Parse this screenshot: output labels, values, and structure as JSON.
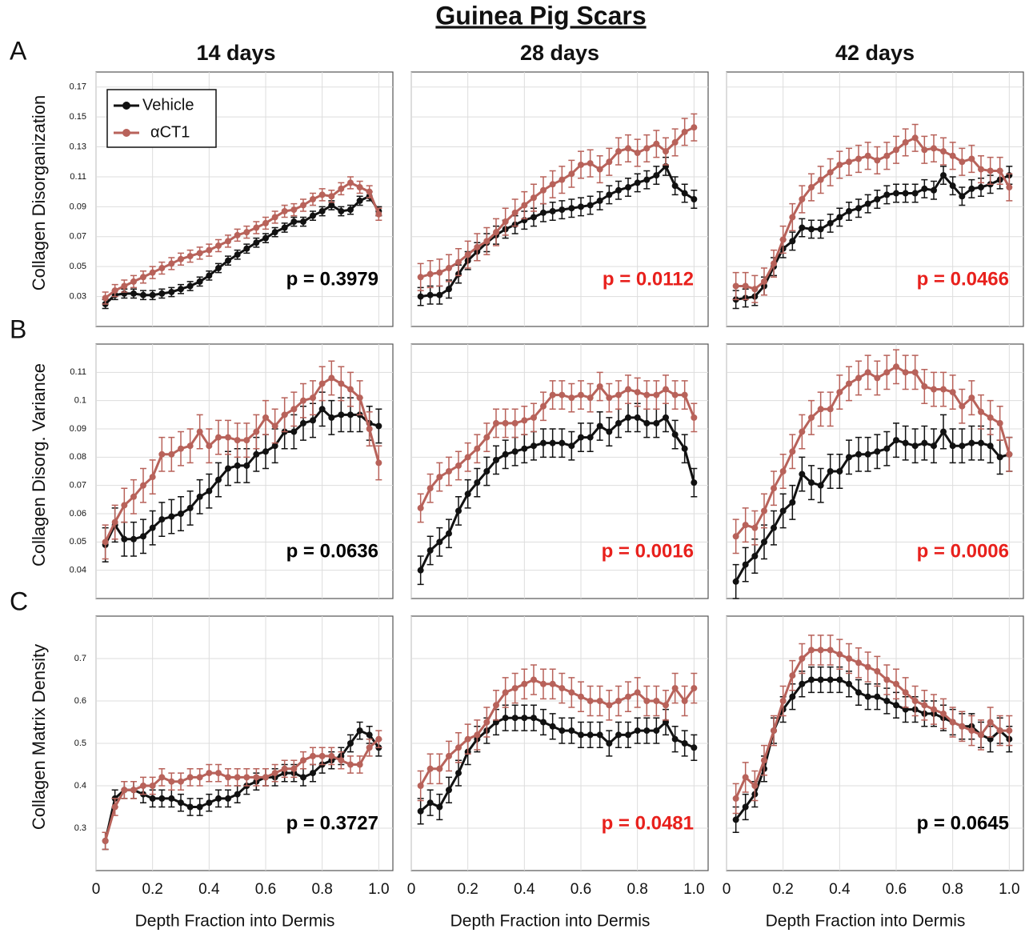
{
  "title": "Guinea Pig Scars",
  "chart_data": [
    {
      "type": "line",
      "title": "14 days",
      "panel_label": "A",
      "ylabel": "Collagen Disorganization",
      "legend": "upper left",
      "annotation": "p = 0.3979",
      "annotation_color": "#000000",
      "grid": true,
      "xlim": [
        0,
        1.05
      ],
      "ylim": [
        0.01,
        0.18
      ],
      "yticks": [
        0.03,
        0.05,
        0.07,
        0.09,
        0.11,
        0.13,
        0.15,
        0.17
      ],
      "x": [
        0.033,
        0.067,
        0.1,
        0.133,
        0.167,
        0.2,
        0.233,
        0.267,
        0.3,
        0.333,
        0.367,
        0.4,
        0.433,
        0.467,
        0.5,
        0.533,
        0.567,
        0.6,
        0.633,
        0.667,
        0.7,
        0.733,
        0.767,
        0.8,
        0.833,
        0.867,
        0.9,
        0.933,
        0.967,
        1.0
      ],
      "series": [
        {
          "name": "Vehicle",
          "color": "#111111",
          "error": 0.003,
          "values": [
            0.025,
            0.031,
            0.032,
            0.032,
            0.031,
            0.031,
            0.032,
            0.033,
            0.035,
            0.037,
            0.04,
            0.044,
            0.049,
            0.054,
            0.058,
            0.062,
            0.066,
            0.069,
            0.073,
            0.076,
            0.08,
            0.08,
            0.084,
            0.087,
            0.091,
            0.087,
            0.088,
            0.094,
            0.097,
            0.087
          ]
        },
        {
          "name": "αCT1",
          "color": "#b8625a",
          "error": 0.004,
          "values": [
            0.029,
            0.034,
            0.037,
            0.04,
            0.043,
            0.046,
            0.049,
            0.052,
            0.055,
            0.057,
            0.059,
            0.061,
            0.064,
            0.067,
            0.071,
            0.073,
            0.076,
            0.079,
            0.083,
            0.087,
            0.088,
            0.091,
            0.095,
            0.098,
            0.097,
            0.102,
            0.106,
            0.103,
            0.1,
            0.085
          ]
        }
      ]
    },
    {
      "type": "line",
      "title": "28 days",
      "annotation": "p = 0.0112",
      "annotation_color": "#e8201c",
      "grid": true,
      "xlim": [
        0,
        1.05
      ],
      "ylim": [
        0.01,
        0.18
      ],
      "x": [
        0.033,
        0.067,
        0.1,
        0.133,
        0.167,
        0.2,
        0.233,
        0.267,
        0.3,
        0.333,
        0.367,
        0.4,
        0.433,
        0.467,
        0.5,
        0.533,
        0.567,
        0.6,
        0.633,
        0.667,
        0.7,
        0.733,
        0.767,
        0.8,
        0.833,
        0.867,
        0.9,
        0.933,
        0.967,
        1.0
      ],
      "series": [
        {
          "color": "#111111",
          "error": 0.006,
          "values": [
            0.03,
            0.031,
            0.031,
            0.035,
            0.045,
            0.054,
            0.06,
            0.066,
            0.071,
            0.075,
            0.078,
            0.081,
            0.083,
            0.086,
            0.087,
            0.088,
            0.089,
            0.09,
            0.091,
            0.094,
            0.098,
            0.101,
            0.103,
            0.106,
            0.108,
            0.111,
            0.117,
            0.104,
            0.099,
            0.095
          ]
        },
        {
          "color": "#b8625a",
          "error": 0.009,
          "values": [
            0.043,
            0.045,
            0.046,
            0.049,
            0.053,
            0.058,
            0.063,
            0.067,
            0.073,
            0.08,
            0.086,
            0.091,
            0.096,
            0.101,
            0.105,
            0.108,
            0.112,
            0.118,
            0.119,
            0.115,
            0.12,
            0.127,
            0.129,
            0.126,
            0.129,
            0.132,
            0.127,
            0.133,
            0.14,
            0.143
          ]
        }
      ]
    },
    {
      "type": "line",
      "title": "42 days",
      "annotation": "p = 0.0466",
      "annotation_color": "#e8201c",
      "grid": true,
      "xlim": [
        0,
        1.05
      ],
      "ylim": [
        0.01,
        0.18
      ],
      "x": [
        0.033,
        0.067,
        0.1,
        0.133,
        0.167,
        0.2,
        0.233,
        0.267,
        0.3,
        0.333,
        0.367,
        0.4,
        0.433,
        0.467,
        0.5,
        0.533,
        0.567,
        0.6,
        0.633,
        0.667,
        0.7,
        0.733,
        0.767,
        0.8,
        0.833,
        0.867,
        0.9,
        0.933,
        0.967,
        1.0
      ],
      "series": [
        {
          "color": "#111111",
          "error": 0.006,
          "values": [
            0.028,
            0.029,
            0.03,
            0.037,
            0.05,
            0.062,
            0.067,
            0.076,
            0.075,
            0.075,
            0.079,
            0.083,
            0.087,
            0.089,
            0.092,
            0.095,
            0.098,
            0.099,
            0.099,
            0.099,
            0.102,
            0.101,
            0.111,
            0.104,
            0.097,
            0.102,
            0.103,
            0.105,
            0.108,
            0.111
          ]
        },
        {
          "color": "#b8625a",
          "error": 0.009,
          "values": [
            0.037,
            0.037,
            0.035,
            0.04,
            0.052,
            0.068,
            0.083,
            0.095,
            0.103,
            0.108,
            0.113,
            0.118,
            0.12,
            0.122,
            0.124,
            0.121,
            0.124,
            0.128,
            0.133,
            0.136,
            0.128,
            0.129,
            0.127,
            0.124,
            0.12,
            0.122,
            0.115,
            0.114,
            0.114,
            0.103
          ]
        }
      ]
    },
    {
      "type": "line",
      "panel_label": "B",
      "ylabel": "Collagen Disorg. Variance",
      "annotation": "p = 0.0636",
      "annotation_color": "#000000",
      "grid": true,
      "xlim": [
        0,
        1.05
      ],
      "ylim": [
        0.03,
        0.12
      ],
      "yticks": [
        0.04,
        0.05,
        0.06,
        0.07,
        0.08,
        0.09,
        0.1,
        0.11
      ],
      "x": [
        0.033,
        0.067,
        0.1,
        0.133,
        0.167,
        0.2,
        0.233,
        0.267,
        0.3,
        0.333,
        0.367,
        0.4,
        0.433,
        0.467,
        0.5,
        0.533,
        0.567,
        0.6,
        0.633,
        0.667,
        0.7,
        0.733,
        0.767,
        0.8,
        0.833,
        0.867,
        0.9,
        0.933,
        0.967,
        1.0
      ],
      "series": [
        {
          "color": "#111111",
          "error": 0.006,
          "values": [
            0.049,
            0.056,
            0.051,
            0.051,
            0.052,
            0.055,
            0.058,
            0.059,
            0.06,
            0.062,
            0.066,
            0.068,
            0.072,
            0.076,
            0.077,
            0.077,
            0.081,
            0.082,
            0.084,
            0.089,
            0.089,
            0.092,
            0.093,
            0.097,
            0.094,
            0.095,
            0.095,
            0.095,
            0.092,
            0.091
          ]
        },
        {
          "color": "#b8625a",
          "error": 0.006,
          "values": [
            0.05,
            0.057,
            0.063,
            0.066,
            0.07,
            0.073,
            0.081,
            0.081,
            0.083,
            0.084,
            0.089,
            0.084,
            0.087,
            0.087,
            0.086,
            0.086,
            0.089,
            0.094,
            0.091,
            0.095,
            0.097,
            0.1,
            0.101,
            0.106,
            0.108,
            0.106,
            0.104,
            0.101,
            0.09,
            0.078
          ]
        }
      ]
    },
    {
      "type": "line",
      "annotation": "p = 0.0016",
      "annotation_color": "#e8201c",
      "grid": true,
      "xlim": [
        0,
        1.05
      ],
      "ylim": [
        0.03,
        0.12
      ],
      "x": [
        0.033,
        0.067,
        0.1,
        0.133,
        0.167,
        0.2,
        0.233,
        0.267,
        0.3,
        0.333,
        0.367,
        0.4,
        0.433,
        0.467,
        0.5,
        0.533,
        0.567,
        0.6,
        0.633,
        0.667,
        0.7,
        0.733,
        0.767,
        0.8,
        0.833,
        0.867,
        0.9,
        0.933,
        0.967,
        1.0
      ],
      "series": [
        {
          "color": "#111111",
          "error": 0.005,
          "values": [
            0.04,
            0.047,
            0.05,
            0.053,
            0.061,
            0.067,
            0.071,
            0.075,
            0.079,
            0.081,
            0.082,
            0.083,
            0.084,
            0.085,
            0.085,
            0.085,
            0.084,
            0.087,
            0.087,
            0.091,
            0.089,
            0.092,
            0.094,
            0.094,
            0.092,
            0.092,
            0.094,
            0.088,
            0.083,
            0.071
          ]
        },
        {
          "color": "#b8625a",
          "error": 0.005,
          "values": [
            0.062,
            0.069,
            0.073,
            0.075,
            0.077,
            0.08,
            0.083,
            0.087,
            0.092,
            0.092,
            0.092,
            0.093,
            0.094,
            0.098,
            0.102,
            0.102,
            0.101,
            0.102,
            0.101,
            0.105,
            0.101,
            0.102,
            0.104,
            0.103,
            0.102,
            0.102,
            0.104,
            0.102,
            0.102,
            0.094
          ]
        }
      ]
    },
    {
      "type": "line",
      "annotation": "p = 0.0006",
      "annotation_color": "#e8201c",
      "grid": true,
      "xlim": [
        0,
        1.05
      ],
      "ylim": [
        0.03,
        0.12
      ],
      "x": [
        0.033,
        0.067,
        0.1,
        0.133,
        0.167,
        0.2,
        0.233,
        0.267,
        0.3,
        0.333,
        0.367,
        0.4,
        0.433,
        0.467,
        0.5,
        0.533,
        0.567,
        0.6,
        0.633,
        0.667,
        0.7,
        0.733,
        0.767,
        0.8,
        0.833,
        0.867,
        0.9,
        0.933,
        0.967,
        1.0
      ],
      "series": [
        {
          "color": "#111111",
          "error": 0.006,
          "values": [
            0.036,
            0.042,
            0.045,
            0.05,
            0.055,
            0.061,
            0.064,
            0.074,
            0.071,
            0.07,
            0.075,
            0.075,
            0.08,
            0.081,
            0.081,
            0.082,
            0.083,
            0.086,
            0.085,
            0.084,
            0.085,
            0.084,
            0.089,
            0.084,
            0.084,
            0.085,
            0.085,
            0.084,
            0.08,
            0.081
          ]
        },
        {
          "color": "#b8625a",
          "error": 0.006,
          "values": [
            0.052,
            0.056,
            0.055,
            0.061,
            0.069,
            0.075,
            0.082,
            0.089,
            0.094,
            0.097,
            0.097,
            0.103,
            0.106,
            0.108,
            0.11,
            0.108,
            0.11,
            0.112,
            0.11,
            0.11,
            0.105,
            0.104,
            0.104,
            0.103,
            0.098,
            0.101,
            0.096,
            0.094,
            0.092,
            0.081
          ]
        }
      ]
    },
    {
      "type": "line",
      "panel_label": "C",
      "ylabel": "Collagen Matrix Density",
      "xlabel": "Depth Fraction into Dermis",
      "annotation": "p = 0.3727",
      "annotation_color": "#000000",
      "grid": true,
      "xlim": [
        0,
        1.05
      ],
      "ylim": [
        0.2,
        0.8
      ],
      "yticks": [
        0.3,
        0.4,
        0.5,
        0.6,
        0.7
      ],
      "xticks": [
        0,
        0.2,
        0.4,
        0.6,
        0.8,
        {
          "value": 1,
          "label": "1.0"
        }
      ],
      "x": [
        0.033,
        0.067,
        0.1,
        0.133,
        0.167,
        0.2,
        0.233,
        0.267,
        0.3,
        0.333,
        0.367,
        0.4,
        0.433,
        0.467,
        0.5,
        0.533,
        0.567,
        0.6,
        0.633,
        0.667,
        0.7,
        0.733,
        0.767,
        0.8,
        0.833,
        0.867,
        0.9,
        0.933,
        0.967,
        1.0
      ],
      "series": [
        {
          "color": "#111111",
          "error": 0.02,
          "values": [
            0.27,
            0.37,
            0.39,
            0.39,
            0.38,
            0.37,
            0.37,
            0.37,
            0.36,
            0.35,
            0.35,
            0.36,
            0.37,
            0.37,
            0.38,
            0.4,
            0.41,
            0.42,
            0.42,
            0.43,
            0.43,
            0.42,
            0.43,
            0.45,
            0.46,
            0.47,
            0.5,
            0.53,
            0.52,
            0.49
          ]
        },
        {
          "color": "#b8625a",
          "error": 0.02,
          "values": [
            0.27,
            0.35,
            0.39,
            0.39,
            0.4,
            0.4,
            0.42,
            0.41,
            0.41,
            0.42,
            0.42,
            0.43,
            0.43,
            0.42,
            0.42,
            0.42,
            0.42,
            0.42,
            0.43,
            0.44,
            0.44,
            0.46,
            0.47,
            0.47,
            0.47,
            0.46,
            0.45,
            0.45,
            0.49,
            0.51
          ]
        }
      ]
    },
    {
      "type": "line",
      "xlabel": "Depth Fraction into Dermis",
      "annotation": "p = 0.0481",
      "annotation_color": "#e8201c",
      "grid": true,
      "xlim": [
        0,
        1.05
      ],
      "ylim": [
        0.2,
        0.8
      ],
      "xticks": [
        0,
        0.2,
        0.4,
        0.6,
        0.8,
        {
          "value": 1,
          "label": "1.0"
        }
      ],
      "x": [
        0.033,
        0.067,
        0.1,
        0.133,
        0.167,
        0.2,
        0.233,
        0.267,
        0.3,
        0.333,
        0.367,
        0.4,
        0.433,
        0.467,
        0.5,
        0.533,
        0.567,
        0.6,
        0.633,
        0.667,
        0.7,
        0.733,
        0.767,
        0.8,
        0.833,
        0.867,
        0.9,
        0.933,
        0.967,
        1.0
      ],
      "series": [
        {
          "color": "#111111",
          "error": 0.03,
          "values": [
            0.34,
            0.36,
            0.35,
            0.39,
            0.43,
            0.48,
            0.51,
            0.53,
            0.55,
            0.56,
            0.56,
            0.56,
            0.56,
            0.55,
            0.54,
            0.53,
            0.53,
            0.52,
            0.52,
            0.52,
            0.5,
            0.52,
            0.52,
            0.53,
            0.53,
            0.53,
            0.55,
            0.51,
            0.5,
            0.49
          ]
        },
        {
          "color": "#b8625a",
          "error": 0.035,
          "values": [
            0.4,
            0.44,
            0.44,
            0.47,
            0.49,
            0.51,
            0.52,
            0.55,
            0.59,
            0.62,
            0.63,
            0.64,
            0.65,
            0.64,
            0.64,
            0.63,
            0.62,
            0.61,
            0.6,
            0.6,
            0.59,
            0.6,
            0.61,
            0.62,
            0.6,
            0.6,
            0.59,
            0.63,
            0.6,
            0.63
          ]
        }
      ]
    },
    {
      "type": "line",
      "xlabel": "Depth Fraction into Dermis",
      "annotation": "p = 0.0645",
      "annotation_color": "#000000",
      "grid": true,
      "xlim": [
        0,
        1.05
      ],
      "ylim": [
        0.2,
        0.8
      ],
      "xticks": [
        0,
        0.2,
        0.4,
        0.6,
        0.8,
        {
          "value": 1,
          "label": "1.0"
        }
      ],
      "x": [
        0.033,
        0.067,
        0.1,
        0.133,
        0.167,
        0.2,
        0.233,
        0.267,
        0.3,
        0.333,
        0.367,
        0.4,
        0.433,
        0.467,
        0.5,
        0.533,
        0.567,
        0.6,
        0.633,
        0.667,
        0.7,
        0.733,
        0.767,
        0.8,
        0.833,
        0.867,
        0.9,
        0.933,
        0.967,
        1.0
      ],
      "series": [
        {
          "color": "#111111",
          "error": 0.03,
          "values": [
            0.32,
            0.35,
            0.38,
            0.44,
            0.53,
            0.58,
            0.61,
            0.64,
            0.65,
            0.65,
            0.65,
            0.65,
            0.64,
            0.62,
            0.61,
            0.61,
            0.6,
            0.59,
            0.58,
            0.58,
            0.57,
            0.57,
            0.56,
            0.55,
            0.54,
            0.54,
            0.52,
            0.51,
            0.53,
            0.51
          ]
        },
        {
          "color": "#b8625a",
          "error": 0.035,
          "values": [
            0.37,
            0.42,
            0.4,
            0.46,
            0.53,
            0.6,
            0.66,
            0.7,
            0.72,
            0.72,
            0.72,
            0.71,
            0.7,
            0.69,
            0.68,
            0.67,
            0.65,
            0.64,
            0.62,
            0.6,
            0.59,
            0.58,
            0.57,
            0.55,
            0.54,
            0.53,
            0.52,
            0.55,
            0.53,
            0.53
          ]
        }
      ]
    }
  ]
}
